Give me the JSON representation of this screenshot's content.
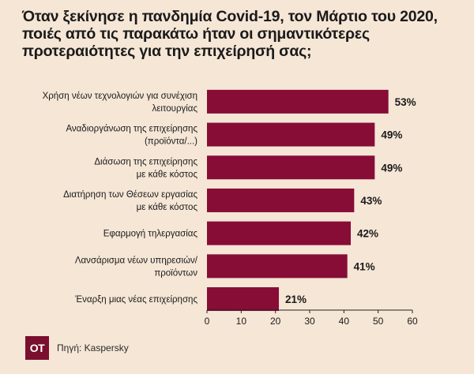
{
  "title": "Όταν ξεκίνησε η πανδημία Covid-19, τον Μάρτιο του 2020, ποιές από τις παρακάτω ήταν οι σημαντικότερες προτεραιότητες για την επιχείρησή σας;",
  "footer": {
    "logo_text": "OT",
    "source": "Πηγή: Kaspersky"
  },
  "colors": {
    "bar": "#870d36",
    "background": "#f5e6d6"
  },
  "chart_data": {
    "type": "bar",
    "orientation": "horizontal",
    "categories": [
      [
        "Χρήση νέων τεχνολογιών για συνέχιση",
        "λειτουργίας"
      ],
      [
        "Αναδιοργάνωση της επιχείρησης",
        "(προϊόντα/...)"
      ],
      [
        "Διάσωση της επιχείρησης",
        "με κάθε κόστος"
      ],
      [
        "Διατήρηση των Θέσεων εργασίας",
        "με κάθε κόστος"
      ],
      [
        "Εφαρμογή τηλεργασίας"
      ],
      [
        "Λανσάρισμα νέων υπηρεσιών/",
        "προϊόντων"
      ],
      [
        "Έναρξη μιας νέας επιχείρησης"
      ]
    ],
    "values": [
      53,
      49,
      49,
      43,
      42,
      41,
      21
    ],
    "value_labels": [
      "53%",
      "49%",
      "49%",
      "43%",
      "42%",
      "41%",
      "21%"
    ],
    "xlim": [
      0,
      60
    ],
    "xticks": [
      0,
      10,
      20,
      30,
      40,
      50,
      60
    ],
    "grid": false
  }
}
